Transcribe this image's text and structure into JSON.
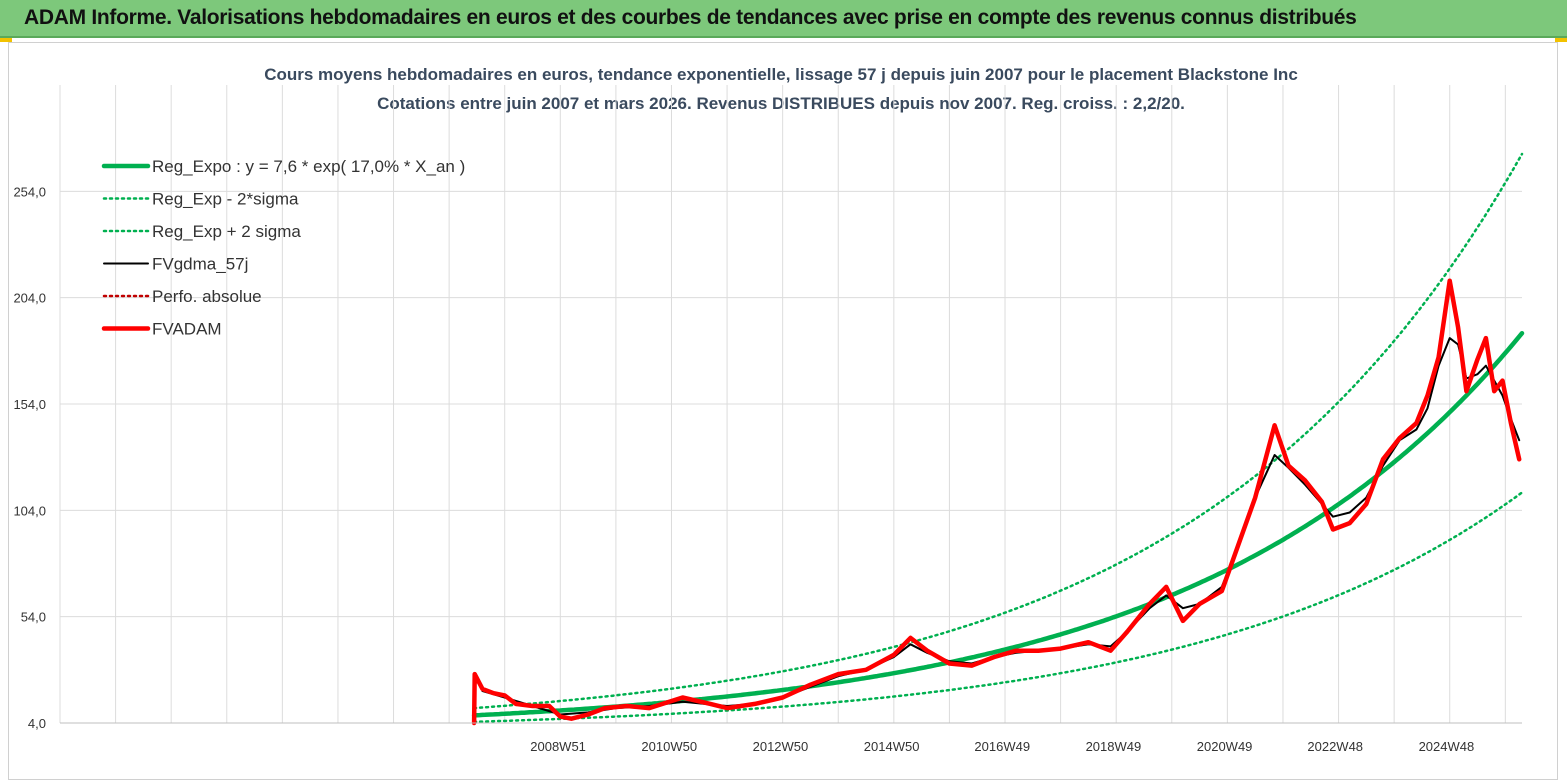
{
  "banner": {
    "title": "ADAM Informe. Valorisations hebdomadaires en euros et des courbes de tendances avec prise en compte des revenus connus distribués",
    "background": "#7dc87b"
  },
  "chart_data": {
    "type": "line",
    "title": "Cours moyens hebdomadaires en euros, tendance exponentielle, lissage 57 j depuis juin 2007 pour le placement Blackstone Inc",
    "subtitle": "Cotations entre juin 2007 et mars 2026. Revenus DISTRIBUES depuis nov 2007. Reg. croiss. : 2,2/20.",
    "xlabel": "",
    "ylabel": "",
    "ylim": [
      4,
      304
    ],
    "yticks": [
      "4,0",
      "54,0",
      "104,0",
      "154,0",
      "204,0",
      "254,0"
    ],
    "ytick_values": [
      4,
      54,
      104,
      154,
      204,
      254
    ],
    "xlim": [
      2000.0,
      2026.3
    ],
    "xticks": [
      "2008W51",
      "2010W50",
      "2012W50",
      "2014W50",
      "2016W49",
      "2018W49",
      "2020W49",
      "2022W48",
      "2024W48"
    ],
    "xtick_values": [
      2008.96,
      2010.96,
      2012.96,
      2014.96,
      2016.95,
      2018.95,
      2020.95,
      2022.94,
      2024.94
    ],
    "grid": true,
    "legend_position": "top-left",
    "regression": {
      "a": 7.6,
      "rate": 0.17,
      "start_year": 2007.45
    },
    "series": [
      {
        "name": "Reg_Expo : y = 7,6 * exp( 17,0% *  X_an )",
        "color": "#00b050",
        "style": "solid-thick",
        "kind": "reg"
      },
      {
        "name": "Reg_Exp - 2*sigma",
        "color": "#00b050",
        "style": "dotted",
        "kind": "reg_low",
        "factor": 0.6
      },
      {
        "name": "Reg_Exp + 2 sigma",
        "color": "#00b050",
        "style": "dotted",
        "kind": "reg_high",
        "factor": 1.45
      },
      {
        "name": "FVgdma_57j",
        "color": "#000000",
        "style": "solid",
        "kind": "smooth"
      },
      {
        "name": "Perfo. absolue",
        "color": "#c00000",
        "style": "dotted",
        "kind": "legend_only"
      },
      {
        "name": "FVADAM",
        "color": "#ff0000",
        "style": "solid-thick",
        "kind": "price"
      }
    ],
    "price_points": [
      {
        "x": 2007.45,
        "y": 4
      },
      {
        "x": 2007.46,
        "y": 27
      },
      {
        "x": 2007.6,
        "y": 20
      },
      {
        "x": 2007.8,
        "y": 18
      },
      {
        "x": 2008.0,
        "y": 17
      },
      {
        "x": 2008.2,
        "y": 13
      },
      {
        "x": 2008.5,
        "y": 12
      },
      {
        "x": 2008.8,
        "y": 12
      },
      {
        "x": 2009.0,
        "y": 7
      },
      {
        "x": 2009.2,
        "y": 6
      },
      {
        "x": 2009.5,
        "y": 8
      },
      {
        "x": 2009.8,
        "y": 11
      },
      {
        "x": 2010.2,
        "y": 12
      },
      {
        "x": 2010.6,
        "y": 11
      },
      {
        "x": 2011.2,
        "y": 16
      },
      {
        "x": 2011.7,
        "y": 13
      },
      {
        "x": 2012.0,
        "y": 11
      },
      {
        "x": 2012.5,
        "y": 13
      },
      {
        "x": 2013.0,
        "y": 16
      },
      {
        "x": 2013.5,
        "y": 22
      },
      {
        "x": 2014.0,
        "y": 27
      },
      {
        "x": 2014.5,
        "y": 29
      },
      {
        "x": 2015.0,
        "y": 36
      },
      {
        "x": 2015.3,
        "y": 44
      },
      {
        "x": 2015.6,
        "y": 38
      },
      {
        "x": 2016.0,
        "y": 32
      },
      {
        "x": 2016.4,
        "y": 31
      },
      {
        "x": 2016.8,
        "y": 35
      },
      {
        "x": 2017.2,
        "y": 38
      },
      {
        "x": 2017.6,
        "y": 38
      },
      {
        "x": 2018.0,
        "y": 39
      },
      {
        "x": 2018.5,
        "y": 42
      },
      {
        "x": 2018.9,
        "y": 38
      },
      {
        "x": 2019.2,
        "y": 47
      },
      {
        "x": 2019.6,
        "y": 60
      },
      {
        "x": 2019.9,
        "y": 68
      },
      {
        "x": 2020.2,
        "y": 52
      },
      {
        "x": 2020.5,
        "y": 60
      },
      {
        "x": 2020.9,
        "y": 66
      },
      {
        "x": 2021.2,
        "y": 88
      },
      {
        "x": 2021.5,
        "y": 110
      },
      {
        "x": 2021.85,
        "y": 144
      },
      {
        "x": 2022.1,
        "y": 125
      },
      {
        "x": 2022.4,
        "y": 118
      },
      {
        "x": 2022.7,
        "y": 108
      },
      {
        "x": 2022.9,
        "y": 95
      },
      {
        "x": 2023.2,
        "y": 98
      },
      {
        "x": 2023.5,
        "y": 107
      },
      {
        "x": 2023.8,
        "y": 128
      },
      {
        "x": 2024.1,
        "y": 138
      },
      {
        "x": 2024.4,
        "y": 145
      },
      {
        "x": 2024.6,
        "y": 158
      },
      {
        "x": 2024.8,
        "y": 176
      },
      {
        "x": 2025.0,
        "y": 212
      },
      {
        "x": 2025.15,
        "y": 190
      },
      {
        "x": 2025.3,
        "y": 160
      },
      {
        "x": 2025.5,
        "y": 175
      },
      {
        "x": 2025.65,
        "y": 185
      },
      {
        "x": 2025.8,
        "y": 160
      },
      {
        "x": 2025.95,
        "y": 165
      },
      {
        "x": 2026.1,
        "y": 145
      },
      {
        "x": 2026.25,
        "y": 128
      }
    ],
    "smooth_points": [
      {
        "x": 2007.6,
        "y": 19
      },
      {
        "x": 2008.0,
        "y": 16
      },
      {
        "x": 2008.5,
        "y": 12
      },
      {
        "x": 2009.0,
        "y": 8
      },
      {
        "x": 2009.5,
        "y": 9
      },
      {
        "x": 2010.0,
        "y": 11
      },
      {
        "x": 2010.6,
        "y": 12
      },
      {
        "x": 2011.2,
        "y": 14
      },
      {
        "x": 2012.0,
        "y": 12
      },
      {
        "x": 2012.5,
        "y": 13
      },
      {
        "x": 2013.0,
        "y": 16
      },
      {
        "x": 2013.5,
        "y": 21
      },
      {
        "x": 2014.0,
        "y": 26
      },
      {
        "x": 2014.5,
        "y": 29
      },
      {
        "x": 2015.0,
        "y": 35
      },
      {
        "x": 2015.3,
        "y": 41
      },
      {
        "x": 2015.6,
        "y": 37
      },
      {
        "x": 2016.0,
        "y": 33
      },
      {
        "x": 2016.4,
        "y": 32
      },
      {
        "x": 2016.8,
        "y": 35
      },
      {
        "x": 2017.2,
        "y": 37
      },
      {
        "x": 2017.6,
        "y": 38
      },
      {
        "x": 2018.0,
        "y": 39
      },
      {
        "x": 2018.5,
        "y": 41
      },
      {
        "x": 2018.9,
        "y": 40
      },
      {
        "x": 2019.2,
        "y": 47
      },
      {
        "x": 2019.6,
        "y": 58
      },
      {
        "x": 2019.9,
        "y": 64
      },
      {
        "x": 2020.2,
        "y": 58
      },
      {
        "x": 2020.5,
        "y": 60
      },
      {
        "x": 2020.9,
        "y": 68
      },
      {
        "x": 2021.2,
        "y": 88
      },
      {
        "x": 2021.5,
        "y": 110
      },
      {
        "x": 2021.85,
        "y": 130
      },
      {
        "x": 2022.1,
        "y": 124
      },
      {
        "x": 2022.4,
        "y": 116
      },
      {
        "x": 2022.7,
        "y": 107
      },
      {
        "x": 2022.9,
        "y": 101
      },
      {
        "x": 2023.2,
        "y": 103
      },
      {
        "x": 2023.5,
        "y": 110
      },
      {
        "x": 2023.8,
        "y": 125
      },
      {
        "x": 2024.1,
        "y": 137
      },
      {
        "x": 2024.4,
        "y": 142
      },
      {
        "x": 2024.6,
        "y": 152
      },
      {
        "x": 2024.8,
        "y": 172
      },
      {
        "x": 2025.0,
        "y": 185
      },
      {
        "x": 2025.15,
        "y": 182
      },
      {
        "x": 2025.3,
        "y": 166
      },
      {
        "x": 2025.5,
        "y": 168
      },
      {
        "x": 2025.65,
        "y": 172
      },
      {
        "x": 2025.8,
        "y": 165
      },
      {
        "x": 2025.95,
        "y": 158
      },
      {
        "x": 2026.1,
        "y": 147
      },
      {
        "x": 2026.25,
        "y": 137
      }
    ]
  }
}
